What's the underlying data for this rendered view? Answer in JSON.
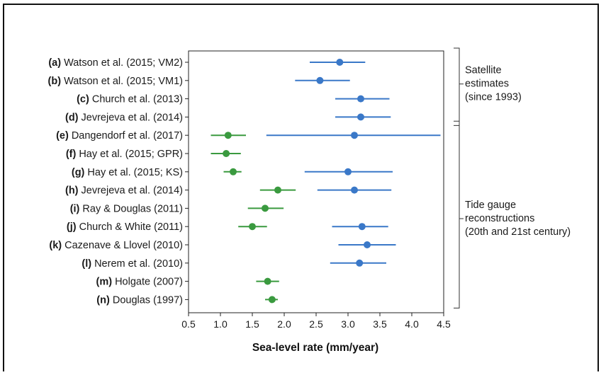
{
  "chart_data": {
    "type": "scatter",
    "xlabel": "Sea-level rate (mm/year)",
    "xlim": [
      0.5,
      4.5
    ],
    "xticks": [
      "0.5",
      "1.0",
      "1.5",
      "2.0",
      "2.5",
      "3.0",
      "3.5",
      "4.0",
      "4.5"
    ],
    "colors": {
      "satellite": "#3a78c8",
      "tide_gauge": "#3a9a3f"
    },
    "rows": [
      {
        "tag": "(a)",
        "label": "Watson et al. (2015; VM2)"
      },
      {
        "tag": "(b)",
        "label": "Watson et al. (2015; VM1)"
      },
      {
        "tag": "(c)",
        "label": "Church et al. (2013)"
      },
      {
        "tag": "(d)",
        "label": "Jevrejeva et al. (2014)"
      },
      {
        "tag": "(e)",
        "label": "Dangendorf et al. (2017)"
      },
      {
        "tag": "(f)",
        "label": "Hay et al. (2015; GPR)"
      },
      {
        "tag": "(g)",
        "label": "Hay et al. (2015; KS)"
      },
      {
        "tag": "(h)",
        "label": "Jevrejeva et al. (2014)"
      },
      {
        "tag": "(i)",
        "label": "Ray & Douglas (2011)"
      },
      {
        "tag": "(j)",
        "label": "Church & White (2011)"
      },
      {
        "tag": "(k)",
        "label": "Cazenave & Llovel (2010)"
      },
      {
        "tag": "(l)",
        "label": "Nerem et al. (2010)"
      },
      {
        "tag": "(m)",
        "label": "Holgate (2007)"
      },
      {
        "tag": "(n)",
        "label": "Douglas (1997)"
      }
    ],
    "series": [
      {
        "points": [
          {
            "row": 0,
            "value": 2.87,
            "low": 2.4,
            "high": 3.27
          },
          {
            "row": 1,
            "value": 2.56,
            "low": 2.17,
            "high": 3.03
          },
          {
            "row": 2,
            "value": 3.2,
            "low": 2.8,
            "high": 3.65
          },
          {
            "row": 3,
            "value": 3.2,
            "low": 2.8,
            "high": 3.67
          },
          {
            "row": 4,
            "value": 3.1,
            "low": 1.72,
            "high": 4.45
          },
          {
            "row": 6,
            "value": 3.0,
            "low": 2.32,
            "high": 3.7
          },
          {
            "row": 7,
            "value": 3.1,
            "low": 2.52,
            "high": 3.68
          },
          {
            "row": 9,
            "value": 3.22,
            "low": 2.75,
            "high": 3.63
          },
          {
            "row": 10,
            "value": 3.3,
            "low": 2.85,
            "high": 3.75
          },
          {
            "row": 11,
            "value": 3.18,
            "low": 2.72,
            "high": 3.6
          }
        ]
      },
      {
        "points": [
          {
            "row": 4,
            "value": 1.12,
            "low": 0.85,
            "high": 1.4
          },
          {
            "row": 5,
            "value": 1.09,
            "low": 0.85,
            "high": 1.32
          },
          {
            "row": 6,
            "value": 1.2,
            "low": 1.05,
            "high": 1.33
          },
          {
            "row": 7,
            "value": 1.9,
            "low": 1.62,
            "high": 2.18
          },
          {
            "row": 8,
            "value": 1.7,
            "low": 1.43,
            "high": 1.99
          },
          {
            "row": 9,
            "value": 1.5,
            "low": 1.28,
            "high": 1.73
          },
          {
            "row": 12,
            "value": 1.74,
            "low": 1.56,
            "high": 1.92
          },
          {
            "row": 13,
            "value": 1.81,
            "low": 1.7,
            "high": 1.9
          }
        ]
      }
    ],
    "groups": [
      {
        "lines": [
          "Satellite",
          "estimates",
          "(since 1993)"
        ],
        "rows": [
          0,
          3
        ]
      },
      {
        "lines": [
          "Tide gauge",
          "reconstructions",
          "(20th and 21st century)"
        ],
        "rows": [
          4,
          13
        ]
      }
    ]
  }
}
